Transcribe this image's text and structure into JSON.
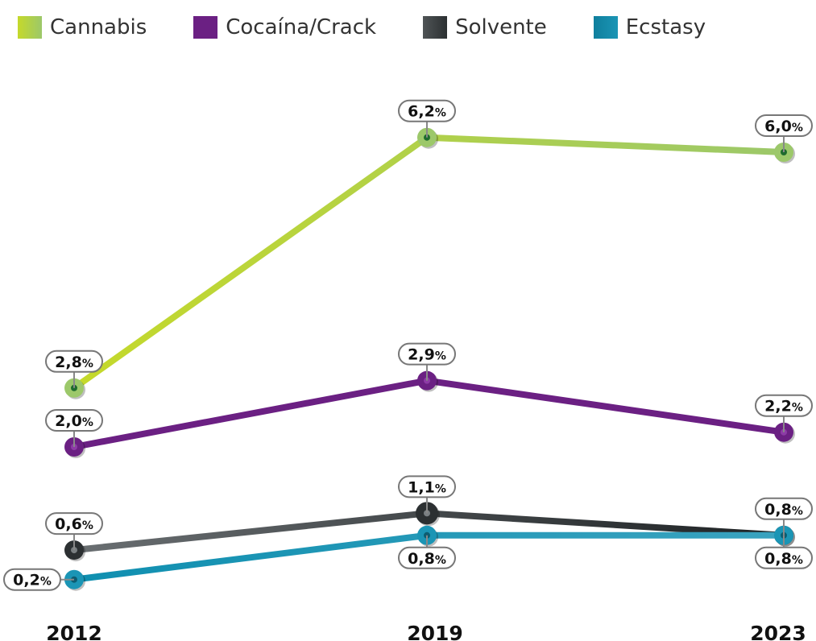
{
  "chart_data": {
    "type": "line",
    "categories": [
      "2012",
      "2019",
      "2023"
    ],
    "series": [
      {
        "name": "Cannabis",
        "values": [
          2.8,
          6.2,
          6.0
        ],
        "labels": [
          "2,8",
          "6,2",
          "6,0"
        ],
        "color": "#9cc86a",
        "color_start": "#c5d92a",
        "dot": "#1e6b2e",
        "gradient": "cannabis"
      },
      {
        "name": "Cocaína/Crack",
        "values": [
          2.0,
          2.9,
          2.2
        ],
        "labels": [
          "2,0",
          "2,9",
          "2,2"
        ],
        "color": "#6b2083",
        "color_start": "#6b2083",
        "dot": "#8d3ca6",
        "gradient": ""
      },
      {
        "name": "Solvente",
        "values": [
          0.6,
          1.1,
          0.8
        ],
        "labels": [
          "0,6",
          "1,1",
          "0,8"
        ],
        "color": "#2c3032",
        "color_start": "#4f5456",
        "dot": "#7a7f82",
        "gradient": "solvente"
      },
      {
        "name": "Ecstasy",
        "values": [
          0.2,
          0.8,
          0.8
        ],
        "labels": [
          "0,2",
          "0,8",
          "0,8"
        ],
        "color": "#1b95b5",
        "color_start": "#0f7f9d",
        "dot": "#0c5d72",
        "gradient": "ecstasy"
      }
    ],
    "unit": "%",
    "ylim": [
      0,
      7
    ],
    "grid": false,
    "legend_position": "top"
  }
}
